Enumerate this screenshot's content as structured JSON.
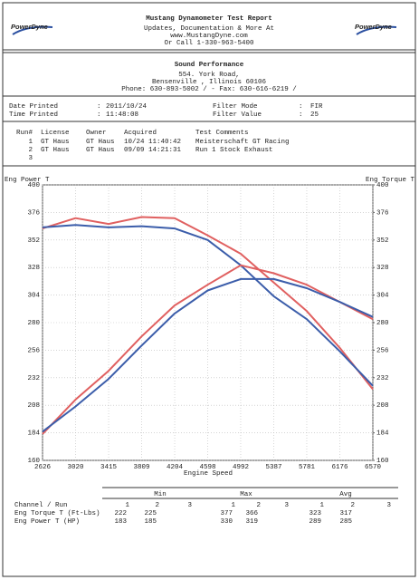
{
  "header": {
    "logo": "PowerDyne",
    "title": "Mustang Dynamometer Test Report",
    "lines": [
      "Updates, Documentation & More At",
      "www.MustangDyne.com",
      "Or Call 1-330-963-5400"
    ]
  },
  "shop": {
    "name": "Sound Performance",
    "lines": [
      "554. York Road,",
      "Bensenville , Illinois 60106",
      "Phone: 630-893-5002 /  - Fax: 630-616-6219 /"
    ]
  },
  "info": {
    "separator": ":",
    "left": [
      [
        "Date Printed",
        "2011/10/24"
      ],
      [
        "Time Printed",
        "11:48:08"
      ]
    ],
    "right": [
      [
        "Filter Mode",
        "FIR"
      ],
      [
        "Filter Value",
        "25"
      ]
    ]
  },
  "runs": {
    "columns": [
      "Run#",
      "License",
      "Owner",
      "Acquired",
      "Test Comments"
    ],
    "rows": [
      [
        "1",
        "GT Haus",
        "GT Haus",
        "10/24 11:40:42",
        "Meisterschaft GT Racing"
      ],
      [
        "2",
        "GT Haus",
        "GT Haus",
        "09/09 14:21:31",
        "Run 1 Stock Exhaust"
      ],
      [
        "3"
      ]
    ],
    "colors": [
      "#d9534f",
      "#3b5daa",
      "#3b5daa"
    ]
  },
  "chart_data": {
    "type": "line",
    "y_label": "Eng Power T",
    "y2_label": "Eng Torque T",
    "x_label": "Engine Speed",
    "x": [
      2626,
      3020,
      3415,
      3809,
      4204,
      4598,
      4992,
      5387,
      5781,
      6176,
      6570
    ],
    "xlim": [
      2626,
      6570
    ],
    "xticks": [
      2626,
      3020,
      3415,
      3809,
      4204,
      4598,
      4992,
      5387,
      5781,
      6176,
      6570
    ],
    "ylim": [
      160,
      400
    ],
    "yticks": [
      160,
      184,
      208,
      232,
      256,
      280,
      304,
      328,
      352,
      376,
      400
    ],
    "y2lim": [
      160,
      400
    ],
    "y2ticks": [
      160,
      184,
      208,
      232,
      256,
      280,
      304,
      328,
      352,
      376,
      400
    ],
    "y_color": "#d9534f",
    "y2_color": "#3b5daa",
    "grid": true,
    "series": [
      {
        "color": "#e06060",
        "axis": "y2",
        "values": [
          362,
          371,
          366,
          372,
          371,
          356,
          340,
          315,
          290,
          258,
          222
        ]
      },
      {
        "color": "#3b5daa",
        "axis": "y2",
        "values": [
          363,
          365,
          363,
          364,
          362,
          352,
          330,
          303,
          283,
          255,
          225
        ]
      },
      {
        "color": "#e06060",
        "values": [
          183,
          213,
          238,
          268,
          295,
          313,
          330,
          323,
          313,
          298,
          283
        ]
      },
      {
        "color": "#3b5daa",
        "values": [
          185,
          207,
          231,
          260,
          288,
          308,
          318,
          318,
          310,
          298,
          285
        ]
      }
    ]
  },
  "summary": {
    "groups": [
      "Min",
      "Max",
      "Avg"
    ],
    "channel": "Channel / Run",
    "runs": [
      "1",
      "2",
      "3"
    ],
    "rows": [
      {
        "label": "Eng Torque T (Ft-Lbs)",
        "values": [
          222,
          225,
          null,
          377,
          366,
          null,
          323,
          317,
          null
        ]
      },
      {
        "label": "Eng Power T (HP)",
        "values": [
          183,
          185,
          null,
          330,
          319,
          null,
          289,
          285,
          null
        ]
      }
    ]
  }
}
